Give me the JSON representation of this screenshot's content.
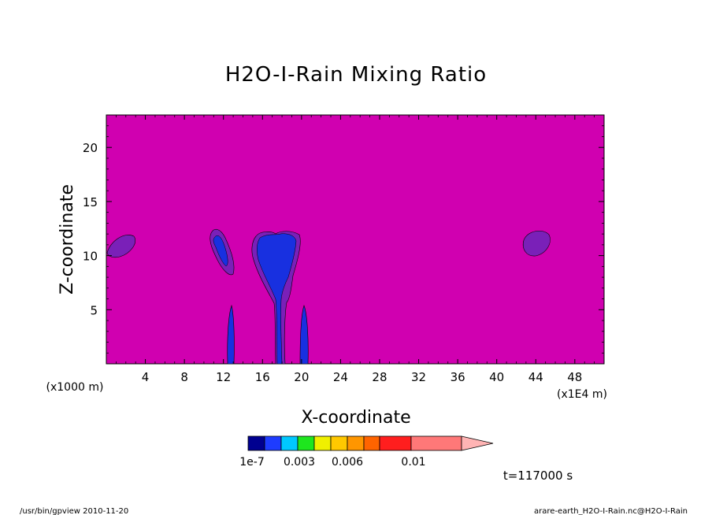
{
  "chart_data": {
    "type": "heatmap",
    "title": "H2O-I-Rain Mixing Ratio",
    "xlabel": "X-coordinate",
    "ylabel": "Z-coordinate",
    "x_unit": "(x1E4 m)",
    "y_unit": "(x1000 m)",
    "xlim": [
      0,
      51
    ],
    "ylim": [
      0,
      23
    ],
    "x_ticks": [
      4,
      8,
      12,
      16,
      20,
      24,
      28,
      32,
      36,
      40,
      44,
      48
    ],
    "y_ticks": [
      5,
      10,
      15,
      20
    ],
    "background_color": "#d000b0",
    "colorbar": {
      "colors": [
        "#000090",
        "#1e3cff",
        "#00c8ff",
        "#1ee61e",
        "#f0f000",
        "#ffc800",
        "#ff9600",
        "#ff6400",
        "#ff1e1e",
        "#ff7878",
        "#ffb4b4"
      ],
      "tick_labels": [
        "1e-7",
        "0.003",
        "0.006",
        "0.01"
      ],
      "extend": "max"
    },
    "features": [
      {
        "x": 1.5,
        "z": 11,
        "value_class": "low-purple"
      },
      {
        "x": 11.5,
        "z": 10.5,
        "value_class": "low-blue"
      },
      {
        "x": 13,
        "z": 2.5,
        "value_class": "low-blue"
      },
      {
        "x": 18,
        "z": 8,
        "value_class": "low-blue"
      },
      {
        "x": 20.5,
        "z": 2.5,
        "value_class": "low-blue"
      },
      {
        "x": 44,
        "z": 11,
        "value_class": "low-purple"
      }
    ],
    "time_label": "t=117000 s"
  },
  "footer": {
    "left": "/usr/bin/gpview  2010-11-20",
    "right": "arare-earth_H2O-I-Rain.nc@H2O-I-Rain"
  }
}
